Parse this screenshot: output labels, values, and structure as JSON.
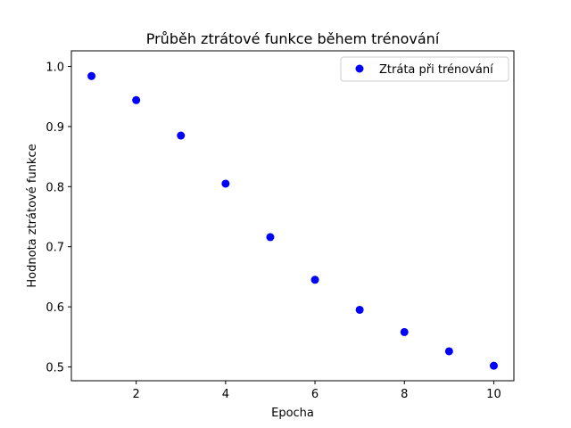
{
  "chart_data": {
    "type": "scatter",
    "title": "Průběh ztrátové funkce během trénování",
    "xlabel": "Epocha",
    "ylabel": "Hodnota ztrátové funkce",
    "xlim": [
      0.55,
      10.45
    ],
    "ylim": [
      0.477,
      1.026
    ],
    "xticks": [
      2,
      4,
      6,
      8,
      10
    ],
    "xtick_labels": [
      "2",
      "4",
      "6",
      "8",
      "10"
    ],
    "yticks": [
      0.5,
      0.6,
      0.7,
      0.8,
      0.9,
      1.0
    ],
    "ytick_labels": [
      "0.5",
      "0.6",
      "0.7",
      "0.8",
      "0.9",
      "1.0"
    ],
    "grid": false,
    "legend_position": "top-right",
    "series": [
      {
        "name": "Ztráta při trénování",
        "color": "#0000ff",
        "marker": "circle",
        "x": [
          1,
          2,
          3,
          4,
          5,
          6,
          7,
          8,
          9,
          10
        ],
        "y": [
          0.984,
          0.944,
          0.885,
          0.805,
          0.716,
          0.645,
          0.595,
          0.558,
          0.526,
          0.502
        ]
      }
    ]
  }
}
